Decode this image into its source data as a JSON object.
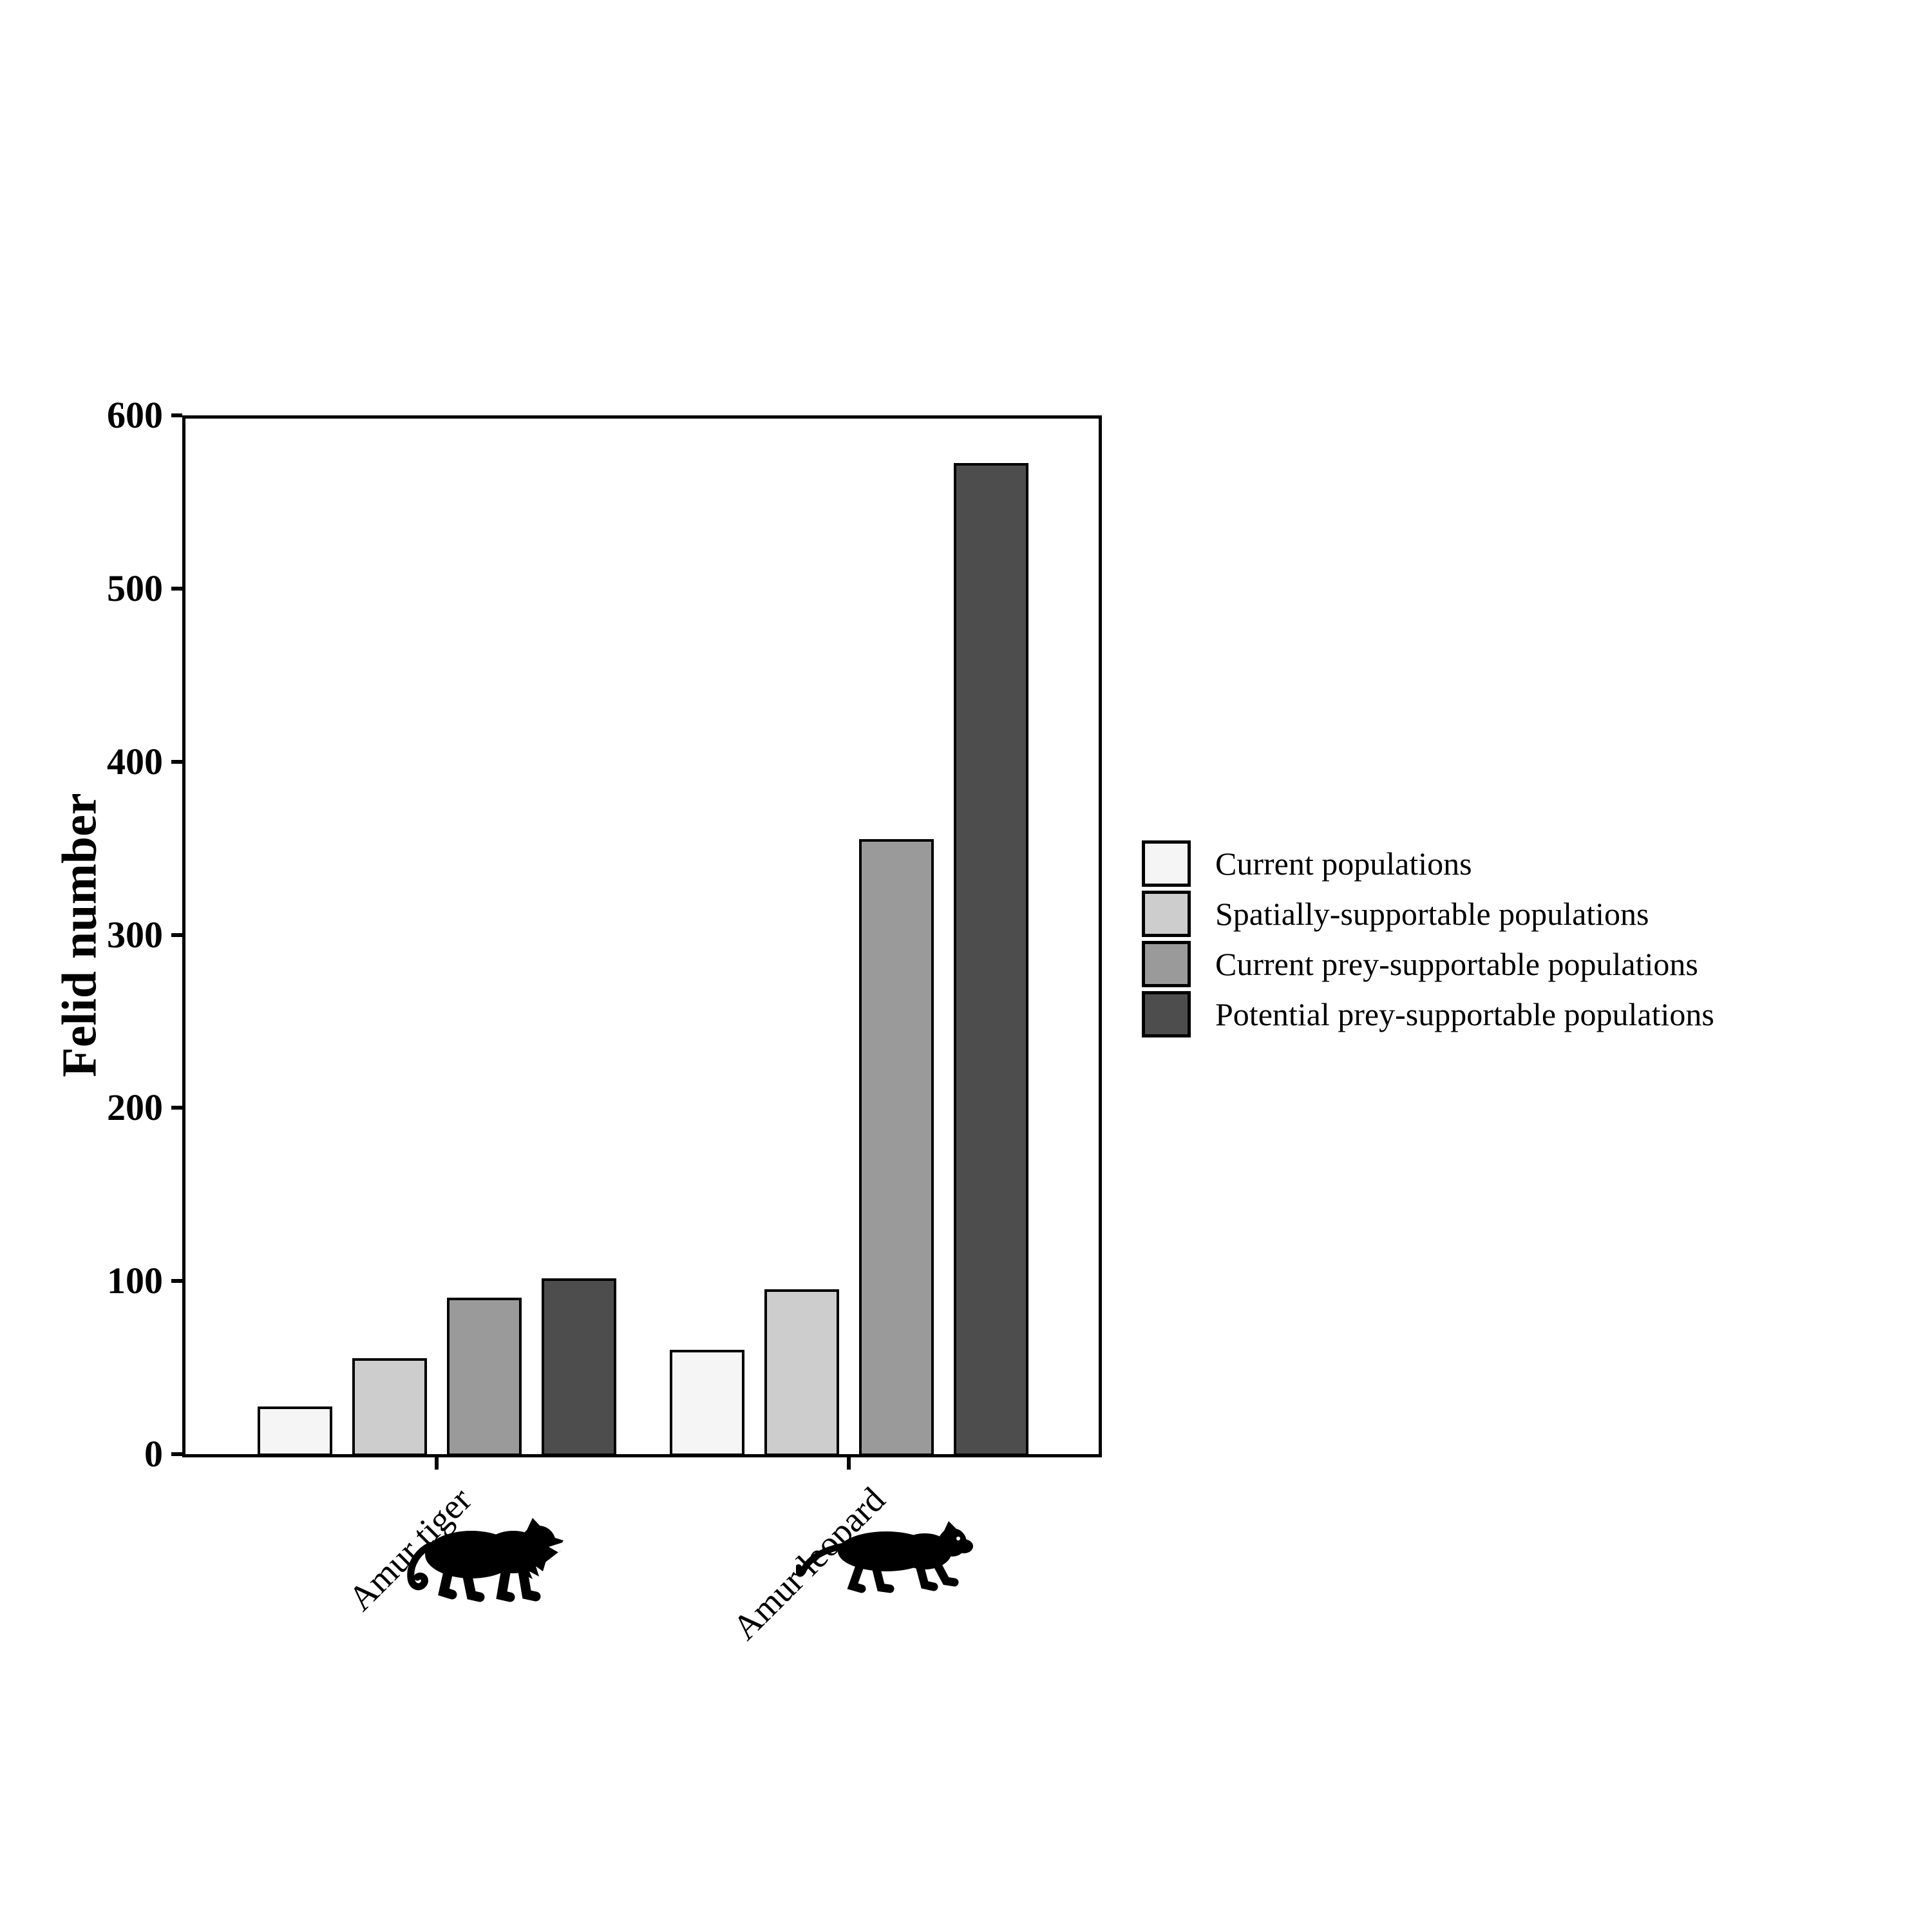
{
  "chart_data": {
    "type": "bar",
    "title": "",
    "xlabel": "",
    "ylabel": "Felid number",
    "ylim": [
      0,
      600
    ],
    "yticks": [
      0,
      100,
      200,
      300,
      400,
      500,
      600
    ],
    "grid": false,
    "legend_position": "right",
    "background": "#ffffff",
    "axis_color": "#000000",
    "bar_edge_color": "#000000",
    "categories": [
      "Amur tiger",
      "Amur leopard"
    ],
    "category_icons": [
      "tiger-silhouette",
      "leopard-silhouette"
    ],
    "series": [
      {
        "name": "Current populations",
        "color": "#f5f5f5",
        "values": [
          27,
          60
        ]
      },
      {
        "name": "Spatially-supportable populations",
        "color": "#cdcdcd",
        "values": [
          55,
          95
        ]
      },
      {
        "name": "Current prey-supportable populations",
        "color": "#9a9a9a",
        "values": [
          90,
          355
        ]
      },
      {
        "name": "Potential prey-supportable populations",
        "color": "#4d4d4d",
        "values": [
          101,
          572
        ]
      }
    ]
  }
}
